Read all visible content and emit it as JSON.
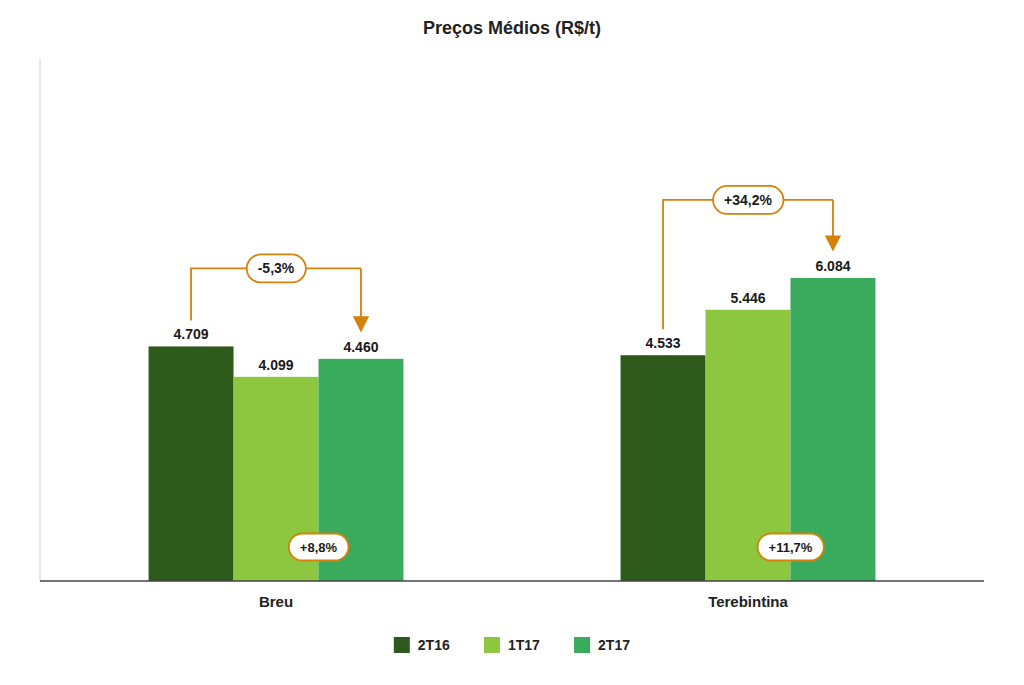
{
  "chart_data": {
    "type": "bar",
    "title": "Preços Médios (R$/t)",
    "categories": [
      "Breu",
      "Terebintina"
    ],
    "series": [
      {
        "name": "2T16",
        "color": "#2d5a1b",
        "values": [
          4709,
          4533
        ],
        "value_labels": [
          "4.709",
          "4.533"
        ]
      },
      {
        "name": "1T17",
        "color": "#8dc63f",
        "values": [
          4099,
          5446
        ],
        "value_labels": [
          "4.099",
          "5.446"
        ]
      },
      {
        "name": "2T17",
        "color": "#3aaa5c",
        "values": [
          4460,
          6084
        ],
        "value_labels": [
          "4.460",
          "6.084"
        ]
      }
    ],
    "ylim": [
      0,
      10500
    ],
    "tick_labels": "x",
    "data_labels": true,
    "grid": false,
    "legend": "bottom",
    "annotations": [
      {
        "text": "-5,3%",
        "category": "Breu",
        "from": "2T16",
        "to": "2T17",
        "color": "#d4820a"
      },
      {
        "text": "+34,2%",
        "category": "Terebintina",
        "from": "2T16",
        "to": "2T17",
        "color": "#d4820a"
      },
      {
        "text": "+8,8%",
        "category": "Breu",
        "from": "1T17",
        "to": "2T17",
        "color": "#d4820a"
      },
      {
        "text": "+11,7%",
        "category": "Terebintina",
        "from": "1T17",
        "to": "2T17",
        "color": "#d4820a"
      }
    ]
  }
}
